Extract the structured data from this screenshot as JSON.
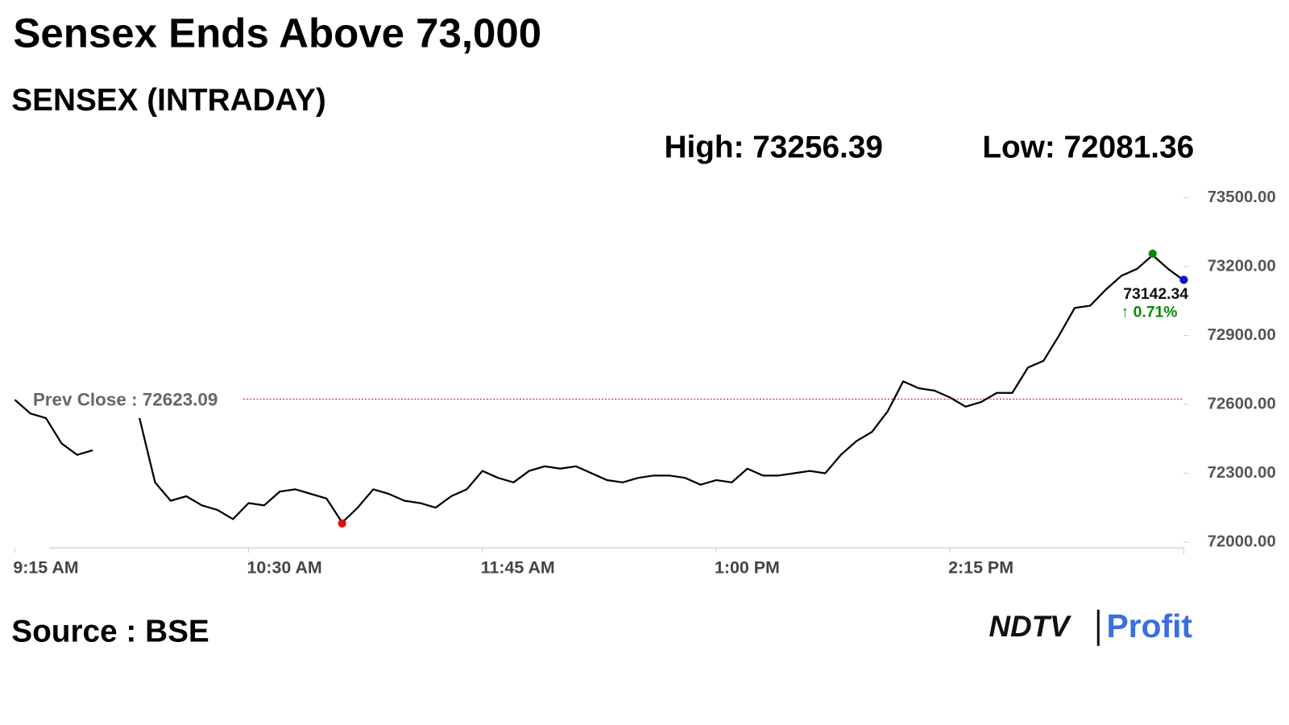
{
  "chart_data": {
    "type": "line",
    "title": "Sensex Ends Above 73,000",
    "subtitle": "SENSEX (INTRADAY)",
    "high": {
      "value": 73256.39,
      "label": "High: 73256.39"
    },
    "low": {
      "value": 72081.36,
      "label": "Low: 72081.36"
    },
    "last": {
      "value": 73142.34,
      "label": "73142.34"
    },
    "change_label": "↑ 0.71%",
    "prev_close": {
      "value": 72623.09,
      "label": "Prev Close : 72623.09"
    },
    "source": "Source : BSE",
    "logo": [
      "NDTV",
      "Profit"
    ],
    "categories": [
      "9:15 AM",
      null,
      null,
      null,
      null,
      null,
      null,
      null,
      null,
      null,
      null,
      null,
      null,
      null,
      null,
      "10:30 AM",
      null,
      null,
      null,
      null,
      null,
      null,
      null,
      null,
      null,
      null,
      null,
      null,
      null,
      null,
      "11:45 AM",
      null,
      null,
      null,
      null,
      null,
      null,
      null,
      null,
      null,
      null,
      null,
      null,
      null,
      null,
      "1:00 PM",
      null,
      null,
      null,
      null,
      null,
      null,
      null,
      null,
      null,
      null,
      null,
      null,
      null,
      null,
      "2:15 PM",
      null,
      null,
      null,
      null,
      null,
      null,
      null,
      null,
      null,
      null,
      null,
      null,
      null,
      null,
      null
    ],
    "values": [
      72620,
      72560,
      72540,
      72430,
      72380,
      72400,
      null,
      null,
      72540,
      72260,
      72180,
      72200,
      72160,
      72140,
      72100,
      72170,
      72160,
      72220,
      72230,
      72210,
      72190,
      72085,
      72150,
      72230,
      72210,
      72180,
      72170,
      72150,
      72200,
      72230,
      72310,
      72280,
      72260,
      72310,
      72330,
      72320,
      72330,
      72300,
      72270,
      72260,
      72280,
      72290,
      72290,
      72280,
      72250,
      72270,
      72260,
      72320,
      72290,
      72290,
      72300,
      72310,
      72300,
      72380,
      72440,
      72480,
      72570,
      72700,
      72670,
      72660,
      72630,
      72590,
      72610,
      72650,
      72650,
      72760,
      72790,
      72900,
      73020,
      73030,
      73100,
      73160,
      73190,
      73250,
      73190,
      73140
    ],
    "color": "#000000",
    "ylim": [
      72000,
      73500
    ],
    "yticks": [
      {
        "value": 72000,
        "label": "72000.00"
      },
      {
        "value": 72300,
        "label": "72300.00"
      },
      {
        "value": 72600,
        "label": "72600.00"
      },
      {
        "value": 72900,
        "label": "72900.00"
      },
      {
        "value": 73200,
        "label": "73200.00"
      },
      {
        "value": 73500,
        "label": "73500.00"
      }
    ]
  }
}
